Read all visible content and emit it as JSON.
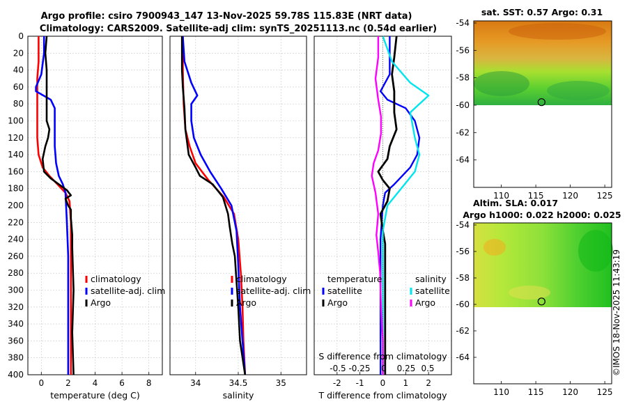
{
  "header": {
    "line1": "Argo profile: csiro 7900943_147 13-Nov-2025 59.78S 115.83E (NRT data)",
    "line2": "Climatology: CARS2009. Satellite-adj clim: synTS_20251113.nc (0.54d earlier)"
  },
  "vertical_credit": "©IMOS 18-Nov-2025 11:43:19",
  "colors": {
    "climatology": "#ff0000",
    "satellite": "#0000ff",
    "argo": "#000000",
    "sal_sat": "#00e5ee",
    "sal_argo": "#ff00ff"
  },
  "chart_data": [
    {
      "id": "temperature",
      "type": "line",
      "xlabel": "temperature (deg C)",
      "ylabel": "",
      "xlim": [
        -1,
        9
      ],
      "ylim": [
        0,
        400
      ],
      "xticks": [
        "0",
        "2",
        "4",
        "6",
        "8"
      ],
      "yticks": [
        "0",
        "20",
        "40",
        "60",
        "80",
        "100",
        "120",
        "140",
        "160",
        "180",
        "200",
        "220",
        "240",
        "260",
        "280",
        "300",
        "320",
        "340",
        "360",
        "380",
        "400"
      ],
      "legend": [
        "climatology",
        "satellite-adj. clim",
        "Argo"
      ],
      "series": [
        {
          "name": "climatology",
          "points": [
            [
              -0.2,
              0
            ],
            [
              -0.2,
              30
            ],
            [
              -0.3,
              50
            ],
            [
              -0.3,
              80
            ],
            [
              -0.3,
              120
            ],
            [
              -0.2,
              140
            ],
            [
              0.1,
              155
            ],
            [
              0.6,
              165
            ],
            [
              1.2,
              175
            ],
            [
              1.8,
              185
            ],
            [
              2.1,
              195
            ],
            [
              2.2,
              220
            ],
            [
              2.2,
              260
            ],
            [
              2.2,
              300
            ],
            [
              2.2,
              350
            ],
            [
              2.2,
              400
            ]
          ]
        },
        {
          "name": "satellite-adj. clim",
          "points": [
            [
              0.2,
              0
            ],
            [
              0.2,
              20
            ],
            [
              0.0,
              45
            ],
            [
              -0.4,
              60
            ],
            [
              -0.4,
              65
            ],
            [
              0.7,
              75
            ],
            [
              1.0,
              85
            ],
            [
              1.0,
              110
            ],
            [
              1.0,
              130
            ],
            [
              1.1,
              150
            ],
            [
              1.3,
              165
            ],
            [
              1.6,
              175
            ],
            [
              1.8,
              185
            ],
            [
              1.9,
              220
            ],
            [
              2.0,
              260
            ],
            [
              2.0,
              300
            ],
            [
              2.0,
              350
            ],
            [
              2.0,
              400
            ]
          ]
        },
        {
          "name": "Argo",
          "points": [
            [
              0.4,
              0
            ],
            [
              0.3,
              20
            ],
            [
              0.4,
              40
            ],
            [
              0.4,
              60
            ],
            [
              0.4,
              80
            ],
            [
              0.4,
              100
            ],
            [
              0.6,
              110
            ],
            [
              0.5,
              120
            ],
            [
              0.3,
              130
            ],
            [
              0.1,
              145
            ],
            [
              0.2,
              160
            ],
            [
              0.7,
              168
            ],
            [
              1.3,
              175
            ],
            [
              1.9,
              182
            ],
            [
              2.2,
              188
            ],
            [
              1.8,
              192
            ],
            [
              2.0,
              200
            ],
            [
              2.2,
              205
            ],
            [
              2.2,
              215
            ],
            [
              2.3,
              235
            ],
            [
              2.3,
              250
            ],
            [
              2.4,
              300
            ],
            [
              2.3,
              350
            ],
            [
              2.4,
              400
            ]
          ]
        }
      ]
    },
    {
      "id": "salinity",
      "type": "line",
      "xlabel": "salinity",
      "xlim": [
        33.7,
        35.3
      ],
      "ylim": [
        0,
        400
      ],
      "xticks": [
        "34",
        "34.5",
        "35"
      ],
      "legend": [
        "climatology",
        "satellite-adj. clim",
        "Argo"
      ],
      "series": [
        {
          "name": "climatology",
          "points": [
            [
              33.85,
              0
            ],
            [
              33.85,
              40
            ],
            [
              33.86,
              80
            ],
            [
              33.88,
              110
            ],
            [
              33.93,
              130
            ],
            [
              34.0,
              150
            ],
            [
              34.15,
              170
            ],
            [
              34.33,
              190
            ],
            [
              34.45,
              210
            ],
            [
              34.5,
              240
            ],
            [
              34.53,
              280
            ],
            [
              34.55,
              320
            ],
            [
              34.56,
              360
            ],
            [
              34.58,
              400
            ]
          ]
        },
        {
          "name": "satellite-adj. clim",
          "points": [
            [
              33.85,
              0
            ],
            [
              33.87,
              30
            ],
            [
              33.95,
              55
            ],
            [
              34.02,
              70
            ],
            [
              33.95,
              80
            ],
            [
              33.95,
              100
            ],
            [
              33.98,
              120
            ],
            [
              34.06,
              140
            ],
            [
              34.17,
              160
            ],
            [
              34.3,
              180
            ],
            [
              34.42,
              200
            ],
            [
              34.48,
              230
            ],
            [
              34.5,
              270
            ],
            [
              34.52,
              320
            ],
            [
              34.55,
              360
            ],
            [
              34.58,
              400
            ]
          ]
        },
        {
          "name": "Argo",
          "points": [
            [
              33.84,
              0
            ],
            [
              33.84,
              40
            ],
            [
              33.85,
              60
            ],
            [
              33.87,
              85
            ],
            [
              33.88,
              110
            ],
            [
              33.9,
              125
            ],
            [
              33.92,
              140
            ],
            [
              34.0,
              155
            ],
            [
              34.05,
              165
            ],
            [
              34.2,
              175
            ],
            [
              34.32,
              190
            ],
            [
              34.38,
              210
            ],
            [
              34.4,
              225
            ],
            [
              34.43,
              245
            ],
            [
              34.46,
              260
            ],
            [
              34.48,
              290
            ],
            [
              34.5,
              320
            ],
            [
              34.52,
              360
            ],
            [
              34.58,
              400
            ]
          ]
        }
      ]
    },
    {
      "id": "difference",
      "type": "line",
      "xlabel": "T difference from climatology",
      "top_label": "S difference from climatology",
      "xlim": [
        -3,
        3
      ],
      "ylim": [
        0,
        400
      ],
      "xticks": [
        "-2",
        "-1",
        "0",
        "1",
        "2"
      ],
      "top_ticks": [
        "-0.5",
        "-0.25",
        "0",
        "0.25",
        "0.5"
      ],
      "legend_left_title": "temperature",
      "legend_right_title": "salinity",
      "legend_left": [
        "satellite",
        "Argo"
      ],
      "legend_right": [
        "satellite",
        "Argo"
      ],
      "series": [
        {
          "name": "T satellite",
          "points": [
            [
              0.3,
              0
            ],
            [
              0.3,
              20
            ],
            [
              0.3,
              45
            ],
            [
              -0.1,
              65
            ],
            [
              0.2,
              75
            ],
            [
              1.0,
              85
            ],
            [
              1.4,
              100
            ],
            [
              1.6,
              120
            ],
            [
              1.5,
              140
            ],
            [
              1.2,
              155
            ],
            [
              0.5,
              175
            ],
            [
              0.1,
              185
            ],
            [
              0.0,
              200
            ],
            [
              -0.1,
              240
            ],
            [
              -0.1,
              280
            ],
            [
              -0.1,
              320
            ],
            [
              -0.1,
              360
            ],
            [
              -0.1,
              400
            ]
          ]
        },
        {
          "name": "T Argo",
          "points": [
            [
              0.6,
              0
            ],
            [
              0.5,
              25
            ],
            [
              0.4,
              45
            ],
            [
              0.5,
              65
            ],
            [
              0.5,
              90
            ],
            [
              0.6,
              110
            ],
            [
              0.3,
              130
            ],
            [
              0.2,
              145
            ],
            [
              -0.2,
              160
            ],
            [
              0.0,
              170
            ],
            [
              0.3,
              180
            ],
            [
              0.2,
              195
            ],
            [
              -0.1,
              210
            ],
            [
              0.0,
              230
            ],
            [
              0.1,
              245
            ],
            [
              0.1,
              280
            ],
            [
              0.1,
              320
            ],
            [
              0.1,
              360
            ],
            [
              0.1,
              400
            ]
          ]
        },
        {
          "name": "S satellite",
          "points": [
            [
              0.0,
              0
            ],
            [
              0.1,
              30
            ],
            [
              0.3,
              55
            ],
            [
              0.5,
              70
            ],
            [
              0.3,
              90
            ],
            [
              0.35,
              120
            ],
            [
              0.4,
              140
            ],
            [
              0.35,
              160
            ],
            [
              0.2,
              180
            ],
            [
              0.05,
              200
            ],
            [
              0.0,
              230
            ],
            [
              0.0,
              280
            ],
            [
              0.0,
              330
            ],
            [
              0.0,
              400
            ]
          ]
        },
        {
          "name": "S Argo",
          "points": [
            [
              -0.05,
              0
            ],
            [
              -0.05,
              25
            ],
            [
              -0.08,
              50
            ],
            [
              -0.05,
              75
            ],
            [
              -0.02,
              95
            ],
            [
              -0.02,
              115
            ],
            [
              -0.05,
              135
            ],
            [
              -0.1,
              150
            ],
            [
              -0.12,
              165
            ],
            [
              -0.08,
              185
            ],
            [
              -0.05,
              210
            ],
            [
              -0.07,
              235
            ],
            [
              -0.05,
              255
            ],
            [
              -0.03,
              280
            ],
            [
              -0.02,
              320
            ],
            [
              0.0,
              360
            ],
            [
              0.0,
              400
            ]
          ]
        }
      ]
    },
    {
      "id": "sst_map",
      "type": "heatmap",
      "title": "sat. SST: 0.57 Argo: 0.31",
      "xlim": [
        106,
        126
      ],
      "ylim": [
        -66,
        -54
      ],
      "xticks": [
        "110",
        "115",
        "120",
        "125"
      ],
      "yticks": [
        "-54",
        "-56",
        "-58",
        "-60",
        "-62",
        "-64"
      ],
      "marker": {
        "lon": 115.83,
        "lat": -59.78
      }
    },
    {
      "id": "sla_map",
      "type": "heatmap",
      "title": "Altim. SLA: 0.017",
      "subtitle": "Argo h1000: 0.022 h2000: 0.025",
      "xlim": [
        106,
        126
      ],
      "ylim": [
        -66,
        -54
      ],
      "xticks": [
        "110",
        "115",
        "120",
        "125"
      ],
      "yticks": [
        "-54",
        "-56",
        "-58",
        "-60",
        "-62",
        "-64"
      ],
      "marker": {
        "lon": 115.83,
        "lat": -59.78
      }
    }
  ]
}
